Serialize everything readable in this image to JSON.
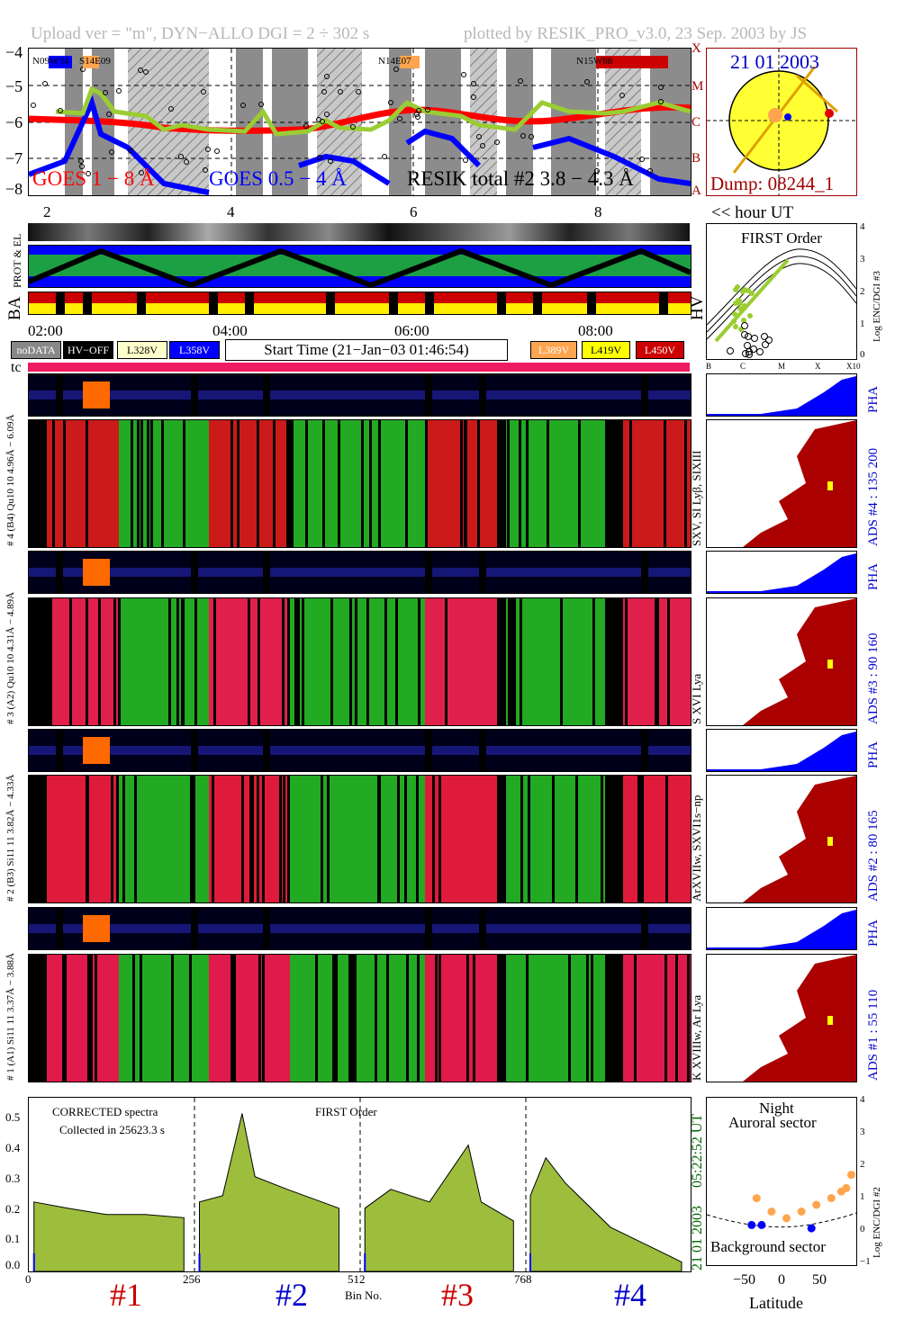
{
  "header": {
    "left": "Upload ver = \"m\", DYN−ALLO DGI =   2 ÷ 302 s",
    "right": "plotted by RESIK_PRO_v3.0, 23 Sep. 2003 by JS"
  },
  "top_plot": {
    "yticks": [
      "−4",
      "−5",
      "−6",
      "−7",
      "−8"
    ],
    "classes": [
      "X",
      "M",
      "C",
      "B",
      "A"
    ],
    "regions": [
      "N09W34",
      "S14E09",
      "N14E07",
      "N15W88"
    ],
    "legend": {
      "goes1": "GOES 1 − 8 Å",
      "goes2": "GOES 0.5 − 4 Å",
      "resik": "RESIK total #2  3.8 − 4.3 Å"
    }
  },
  "sun": {
    "date": "21 01 2003",
    "dump": "Dump: 08244_1"
  },
  "hours": {
    "ticks": [
      "2",
      "4",
      "6",
      "8"
    ],
    "label": "<< hour UT"
  },
  "left_labels": {
    "prot": "PROT & EL",
    "ba": "BA",
    "hv": "HV",
    "tc": "tc"
  },
  "first_order": {
    "title": "FIRST Order",
    "ylabel": "Log ENC/DGI #3",
    "yticks": [
      "4",
      "3",
      "2",
      "1",
      "0"
    ],
    "xticks": [
      "B",
      "C",
      "M",
      "X",
      "X10"
    ]
  },
  "times": [
    "02:00",
    "04:00",
    "06:00",
    "08:00"
  ],
  "status_boxes": {
    "nodata": "noDATA",
    "hvoff": "HV−OFF",
    "l328": "L328V",
    "l358": "L358V",
    "start": "Start Time (21−Jan−03 01:46:54)",
    "l389": "L389V",
    "l419": "L419V",
    "l450": "L450V"
  },
  "channels": [
    {
      "pha_range": "# 4 (B4) Qu10 10 4.96Å − 6.09Å",
      "ads": "ADS #4 :   135 200",
      "lines": "SXV, SI Lyβ, SIXIII",
      "pha": "PHA"
    },
    {
      "pha_range": "# 3 (A2) Qu10 10  4.31Å − 4.89Å",
      "ads": "ADS #3 :   90 160",
      "lines": "S XVI Lya",
      "pha": "PHA"
    },
    {
      "pha_range": "# 2 (B3) Si11 11  3.82Å − 4.33Å",
      "ads": "ADS #2 :   80 165",
      "lines": "ArXVIIw, SXVI1s−np",
      "pha": "PHA"
    },
    {
      "pha_range": "# 1 (A1) Si11 11  3.37Å − 3.88Å",
      "ads": "ADS #1 :   55 110",
      "lines": "K XVIIIw, Ar Lya",
      "pha": "PHA"
    }
  ],
  "spectrum": {
    "title1": "CORRECTED spectra",
    "title2": "Collected in 25623.3 s",
    "title3": "FIRST Order",
    "yticks": [
      "0.5",
      "0.4",
      "0.3",
      "0.2",
      "0.1",
      "0.0"
    ],
    "xticks": [
      "0",
      "256",
      "512",
      "768"
    ],
    "xlabel": "Bin No.",
    "right_time": "05:22:52 UT",
    "right_date": "21 01 2003",
    "channels": [
      "#1",
      "#2",
      "#3",
      "#4"
    ]
  },
  "latitude": {
    "night": "Night",
    "auroral": "Auroral sector",
    "background": "Background sector",
    "xlabel": "Latitude",
    "xticks": [
      "−50",
      "0",
      "50"
    ],
    "yticks": [
      "4",
      "3",
      "2",
      "1",
      "0",
      "−1"
    ],
    "ylabel": "Log ENC/DGI #2"
  },
  "chart_data": [
    {
      "type": "line",
      "ylabel": "",
      "ylim": [
        -8,
        -4
      ],
      "series": [
        {
          "name": "GOES 1 − 8 Å",
          "color": "#ff0000"
        },
        {
          "name": "GOES 0.5 − 4 Å",
          "color": "#0000ff"
        },
        {
          "name": "RESIK total #2  3.8 − 4.3 Å",
          "color": "#9acd32"
        }
      ]
    },
    {
      "type": "scatter",
      "title": "FIRST Order",
      "ylabel": "Log ENC/DGI #3",
      "ylim": [
        0,
        4
      ],
      "xticks": [
        "B",
        "C",
        "M",
        "X",
        "X10"
      ]
    },
    {
      "type": "area",
      "title": "CORRECTED spectra",
      "xlabel": "Bin No.",
      "xlim": [
        0,
        1024
      ],
      "ylim": [
        0,
        0.55
      ],
      "blocks": [
        {
          "name": "#1",
          "x": [
            8,
            60,
            120,
            180,
            240
          ],
          "y": [
            0.22,
            0.2,
            0.18,
            0.18,
            0.17
          ]
        },
        {
          "name": "#2",
          "x": [
            264,
            300,
            330,
            350,
            400,
            480
          ],
          "y": [
            0.22,
            0.24,
            0.5,
            0.3,
            0.26,
            0.2
          ]
        },
        {
          "name": "#3",
          "x": [
            520,
            560,
            620,
            680,
            700,
            750
          ],
          "y": [
            0.2,
            0.26,
            0.22,
            0.4,
            0.22,
            0.16
          ]
        },
        {
          "name": "#4",
          "x": [
            776,
            800,
            830,
            900,
            960,
            1010
          ],
          "y": [
            0.24,
            0.36,
            0.28,
            0.14,
            0.08,
            0.03
          ]
        }
      ]
    },
    {
      "type": "scatter",
      "xlabel": "Latitude",
      "ylabel": "Log ENC/DGI #2",
      "xlim": [
        -75,
        75
      ],
      "ylim": [
        -1,
        4
      ],
      "series": [
        {
          "name": "auroral",
          "color": "#ffa54f",
          "x": [
            -25,
            -10,
            5,
            20,
            35,
            50,
            60,
            65,
            70
          ],
          "y": [
            1.0,
            0.6,
            0.4,
            0.6,
            0.8,
            1.0,
            1.2,
            1.3,
            1.7
          ]
        },
        {
          "name": "background",
          "color": "#0000ff",
          "x": [
            -30,
            -20,
            30
          ],
          "y": [
            0.2,
            0.2,
            0.1
          ]
        }
      ]
    }
  ]
}
